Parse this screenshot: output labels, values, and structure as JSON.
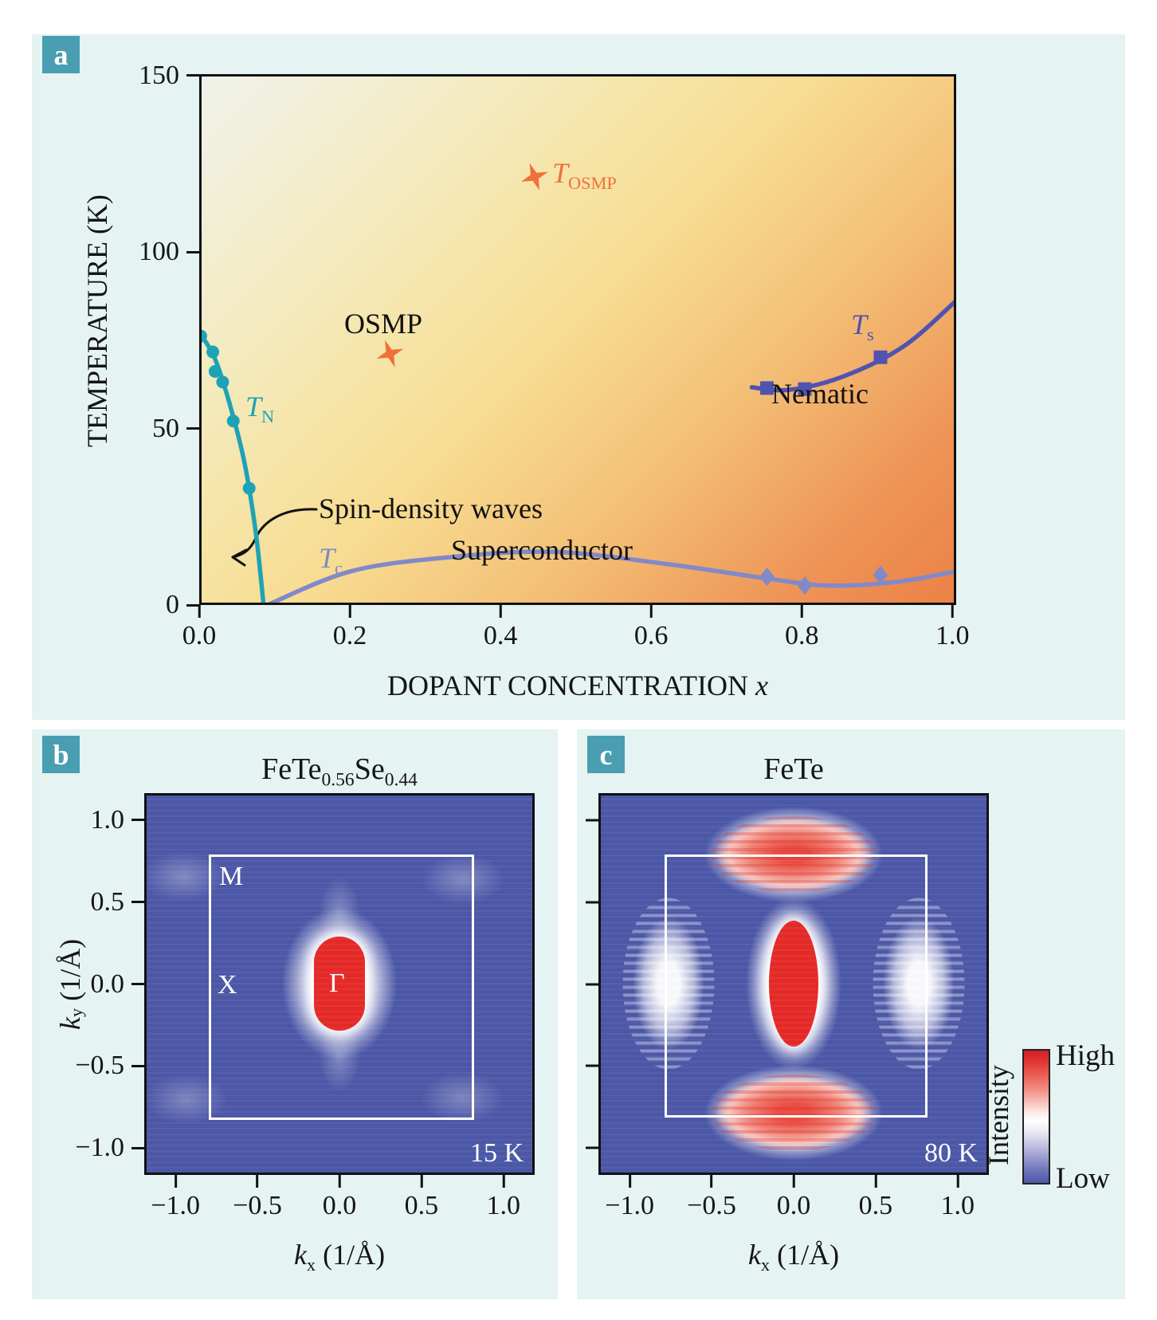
{
  "page": {
    "background": "#ffffff",
    "card_background": "#e5f3f2",
    "panel_label_background": "#4a9eb2"
  },
  "panels": {
    "a": {
      "label": "a",
      "y_axis": {
        "title": "TEMPERATURE (K)",
        "ticks": [
          "150",
          "100",
          "50",
          "0"
        ]
      },
      "x_axis": {
        "title": "DOPANT CONCENTRATION ",
        "title_variable": "x",
        "ticks": [
          "0.0",
          "0.2",
          "0.4",
          "0.6",
          "0.8",
          "1.0"
        ]
      },
      "labels": {
        "osmp": "OSMP",
        "nematic": "Nematic",
        "superconductor": "Superconductor",
        "sdw": "Spin-density waves",
        "t_n_main": "T",
        "t_n_sub": "N",
        "t_c_main": "T",
        "t_c_sub": "c",
        "t_s_main": "T",
        "t_s_sub": "s",
        "t_osmp_main": "T",
        "t_osmp_sub": "OSMP"
      }
    },
    "b": {
      "label": "b",
      "title_parts": {
        "p1": "FeTe",
        "s1": "0.56",
        "p2": "Se",
        "s2": "0.44"
      },
      "temperature": "15 K",
      "x_axis": {
        "ticks": [
          "−1.0",
          "−0.5",
          "0.0",
          "0.5",
          "1.0"
        ],
        "label_var": "k",
        "label_sub": "x",
        "label_units": " (1/Å)"
      },
      "y_axis": {
        "ticks": [
          "1.0",
          "0.5",
          "0.0",
          "−0.5",
          "−1.0"
        ],
        "label_var": "k",
        "label_sub": "y",
        "label_units": " (1/Å)"
      },
      "bz_labels": {
        "m": "M",
        "x": "X",
        "gamma": "Γ"
      }
    },
    "c": {
      "label": "c",
      "title": "FeTe",
      "temperature": "80 K",
      "x_axis": {
        "ticks": [
          "−1.0",
          "−0.5",
          "0.0",
          "0.5",
          "1.0"
        ],
        "label_var": "k",
        "label_sub": "x",
        "label_units": " (1/Å)"
      }
    },
    "colorbar": {
      "title": "Intensity",
      "high": "High",
      "low": "Low"
    }
  },
  "chart_data": [
    {
      "type": "line",
      "panel": "a",
      "title": "Phase diagram of Fe(Te,Se)",
      "xlabel": "DOPANT CONCENTRATION x",
      "ylabel": "TEMPERATURE (K)",
      "xlim": [
        0,
        1.0
      ],
      "ylim": [
        0,
        150
      ],
      "grid": false,
      "background_gradient": [
        "#f0f3ec",
        "#f7e3a0",
        "#ec8145"
      ],
      "series": [
        {
          "name": "T_N spin-density-wave transition",
          "color": "#1ea3b6",
          "marker": "circle",
          "marker_points": [
            [
              0.002,
              76
            ],
            [
              0.018,
              71.5
            ],
            [
              0.021,
              66
            ],
            [
              0.031,
              63
            ],
            [
              0.045,
              52
            ],
            [
              0.066,
              33
            ]
          ],
          "curve": [
            [
              0.0,
              77
            ],
            [
              0.02,
              70
            ],
            [
              0.04,
              57
            ],
            [
              0.06,
              40
            ],
            [
              0.075,
              20
            ],
            [
              0.085,
              0
            ]
          ]
        },
        {
          "name": "T_c superconducting transition",
          "color": "#8289c9",
          "marker": "diamond",
          "marker_points": [
            [
              0.75,
              8
            ],
            [
              0.8,
              5.5
            ],
            [
              0.9,
              8.5
            ]
          ],
          "curve": [
            [
              0.09,
              0
            ],
            [
              0.2,
              9.5
            ],
            [
              0.33,
              13.5
            ],
            [
              0.47,
              15
            ],
            [
              0.62,
              11.5
            ],
            [
              0.75,
              7.5
            ],
            [
              0.83,
              5.5
            ],
            [
              0.92,
              6.5
            ],
            [
              1.0,
              9.5
            ]
          ]
        },
        {
          "name": "T_s nematic structural transition",
          "color": "#5053af",
          "marker": "square",
          "marker_points": [
            [
              0.75,
              61.3
            ],
            [
              0.8,
              61
            ],
            [
              0.9,
              70
            ]
          ],
          "curve": [
            [
              0.73,
              61.5
            ],
            [
              0.78,
              60.8
            ],
            [
              0.85,
              64.5
            ],
            [
              0.93,
              73
            ],
            [
              1.0,
              86
            ]
          ]
        },
        {
          "name": "T_OSMP orbital-selective Mott phase",
          "color": "#f0703a",
          "marker": "four-point-star",
          "marker_points": [
            [
              0.443,
              121
            ],
            [
              0.252,
              71
            ]
          ],
          "curve": []
        }
      ]
    },
    {
      "type": "heatmap",
      "panel": "b",
      "title": "FeTe0.56Se0.44",
      "temperature": "15 K",
      "xlabel": "kx (1/Å)",
      "ylabel": "ky (1/Å)",
      "xlim": [
        -1.15,
        1.15
      ],
      "ylim": [
        -1.15,
        1.15
      ],
      "x_ticks": [
        -1.0,
        -0.5,
        0.0,
        0.5,
        1.0
      ],
      "y_ticks": [
        1.0,
        0.5,
        0.0,
        -0.5,
        -1.0
      ],
      "colormap": "blue-white-red",
      "brillouin_zone_half_width": 0.79,
      "features": [
        {
          "name": "Gamma-centered hole pocket",
          "kx": 0,
          "ky": 0,
          "intensity": "high"
        },
        {
          "name": "faint corner spectral weight",
          "kx": "±0.95",
          "ky": "±0.65",
          "intensity": "very-low"
        }
      ]
    },
    {
      "type": "heatmap",
      "panel": "c",
      "title": "FeTe",
      "temperature": "80 K",
      "xlabel": "kx (1/Å)",
      "xlim": [
        -1.15,
        1.15
      ],
      "ylim": [
        -1.15,
        1.15
      ],
      "x_ticks": [
        -1.0,
        -0.5,
        0.0,
        0.5,
        1.0
      ],
      "colormap": "blue-white-red",
      "brillouin_zone_half_width": 0.79,
      "features": [
        {
          "name": "Gamma-centered pocket",
          "kx": 0,
          "ky": 0,
          "intensity": "high"
        },
        {
          "name": "M-point lobe top",
          "kx": 0,
          "ky": 0.79,
          "intensity": "medium-high"
        },
        {
          "name": "M-point lobe bottom",
          "kx": 0,
          "ky": -0.79,
          "intensity": "medium-high"
        },
        {
          "name": "side lobe left",
          "kx": -0.76,
          "ky": 0,
          "intensity": "medium"
        },
        {
          "name": "side lobe right",
          "kx": 0.76,
          "ky": 0,
          "intensity": "medium"
        }
      ]
    }
  ]
}
